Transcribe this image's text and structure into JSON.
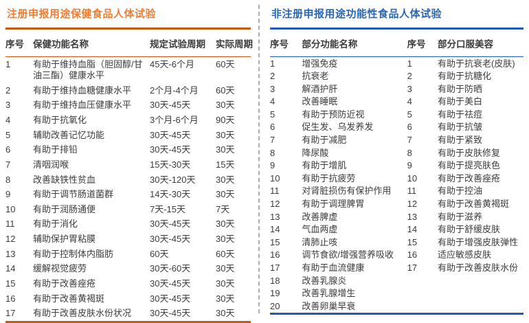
{
  "left_table": {
    "title": "注册申报用途保健食品人体试验",
    "title_color": "#ED7D31",
    "accent_color": "#C55A11",
    "columns": [
      "序号",
      "保健功能名称",
      "规定试验周期",
      "实际周期"
    ],
    "rows": [
      {
        "no": "1",
        "name": "有助于维持血脂（胆固醇/甘油三酯）健康水平",
        "period": "45天-6个月",
        "actual": "60天"
      },
      {
        "no": "2",
        "name": "有助于维持血糖健康水平",
        "period": "2个月-4个月",
        "actual": "60天"
      },
      {
        "no": "3",
        "name": "有助于维持血压健康水平",
        "period": "30天-45天",
        "actual": "30天"
      },
      {
        "no": "4",
        "name": "有助于抗氧化",
        "period": "3个月-6个月",
        "actual": "90天"
      },
      {
        "no": "5",
        "name": "辅助改善记忆功能",
        "period": "30天-45天",
        "actual": "30天"
      },
      {
        "no": "6",
        "name": "有助于排铅",
        "period": "30天-45天",
        "actual": "30天"
      },
      {
        "no": "7",
        "name": "清咽润喉",
        "period": "15天-30天",
        "actual": "15天"
      },
      {
        "no": "8",
        "name": "改善缺铁性贫血",
        "period": "30天-120天",
        "actual": "30天"
      },
      {
        "no": "9",
        "name": "有助于调节肠道菌群",
        "period": "14天-30天",
        "actual": "30天"
      },
      {
        "no": "10",
        "name": "有助于润肠通便",
        "period": "7天-15天",
        "actual": "7天"
      },
      {
        "no": "11",
        "name": "有助于消化",
        "period": "30天-45天",
        "actual": "30天"
      },
      {
        "no": "12",
        "name": "辅助保护胃粘膜",
        "period": "30天-45天",
        "actual": "30天"
      },
      {
        "no": "13",
        "name": "有助于控制体内脂肪",
        "period": "60天",
        "actual": "60天"
      },
      {
        "no": "14",
        "name": "缓解视觉疲劳",
        "period": "30天-60天",
        "actual": "30天"
      },
      {
        "no": "15",
        "name": "有助于改善痤疮",
        "period": "30天-45天",
        "actual": "30天"
      },
      {
        "no": "16",
        "name": "有助于改善黄褐斑",
        "period": "30天-45天",
        "actual": "30天"
      },
      {
        "no": "17",
        "name": "有助于改善皮肤水份状况",
        "period": "30天-45天",
        "actual": "30天"
      }
    ]
  },
  "right_table": {
    "title": "非注册申报用途功能性食品人体试验",
    "title_color": "#2767B8",
    "accent_color": "#1F5BB5",
    "columns": [
      "序号",
      "部分功能名称",
      "序号",
      "部分口服美容"
    ],
    "function_rows": [
      {
        "no": "1",
        "name": "增强免疫"
      },
      {
        "no": "2",
        "name": "抗衰老"
      },
      {
        "no": "3",
        "name": "解酒护肝"
      },
      {
        "no": "4",
        "name": "改善睡眠"
      },
      {
        "no": "5",
        "name": "有助于预防近视"
      },
      {
        "no": "6",
        "name": "促生发、乌发养发"
      },
      {
        "no": "7",
        "name": "有助于减肥"
      },
      {
        "no": "8",
        "name": "降尿酸"
      },
      {
        "no": "9",
        "name": "有助于增肌"
      },
      {
        "no": "10",
        "name": "有助于抗疲劳"
      },
      {
        "no": "11",
        "name": "对肾脏损伤有保护作用"
      },
      {
        "no": "12",
        "name": "有助于调理脾胃"
      },
      {
        "no": "13",
        "name": "改善脾虚"
      },
      {
        "no": "14",
        "name": "气血两虚"
      },
      {
        "no": "15",
        "name": "清肺止咳"
      },
      {
        "no": "16",
        "name": "调节食欲/增强营养吸收"
      },
      {
        "no": "17",
        "name": "有助于血流健康"
      },
      {
        "no": "18",
        "name": "改善乳腺炎"
      },
      {
        "no": "19",
        "name": "改善乳腺增生"
      },
      {
        "no": "20",
        "name": "改善卵巢早衰"
      }
    ],
    "beauty_rows": [
      {
        "no": "1",
        "name": "有助于抗衰老(皮肤)"
      },
      {
        "no": "2",
        "name": "有助于抗糖化"
      },
      {
        "no": "3",
        "name": "有助于防晒"
      },
      {
        "no": "4",
        "name": "有助于美白"
      },
      {
        "no": "5",
        "name": "有助于祛痘"
      },
      {
        "no": "6",
        "name": "有助于抗皱"
      },
      {
        "no": "7",
        "name": "有助于紧致"
      },
      {
        "no": "8",
        "name": "有助于皮肤修复"
      },
      {
        "no": "9",
        "name": "有助于提亮肤色"
      },
      {
        "no": "10",
        "name": "有助于改善痤疮"
      },
      {
        "no": "11",
        "name": "有助于控油"
      },
      {
        "no": "12",
        "name": "有助于改善黄褐斑"
      },
      {
        "no": "13",
        "name": "有助于滋养"
      },
      {
        "no": "14",
        "name": "有助于舒缓皮肤"
      },
      {
        "no": "15",
        "name": "有助于增强皮肤弹性"
      },
      {
        "no": "16",
        "name": "适应敏感皮肤"
      },
      {
        "no": "17",
        "name": "有助于改善皮肤水份"
      }
    ]
  },
  "divider": {
    "style": "dashed",
    "color": "#ADADAD"
  }
}
